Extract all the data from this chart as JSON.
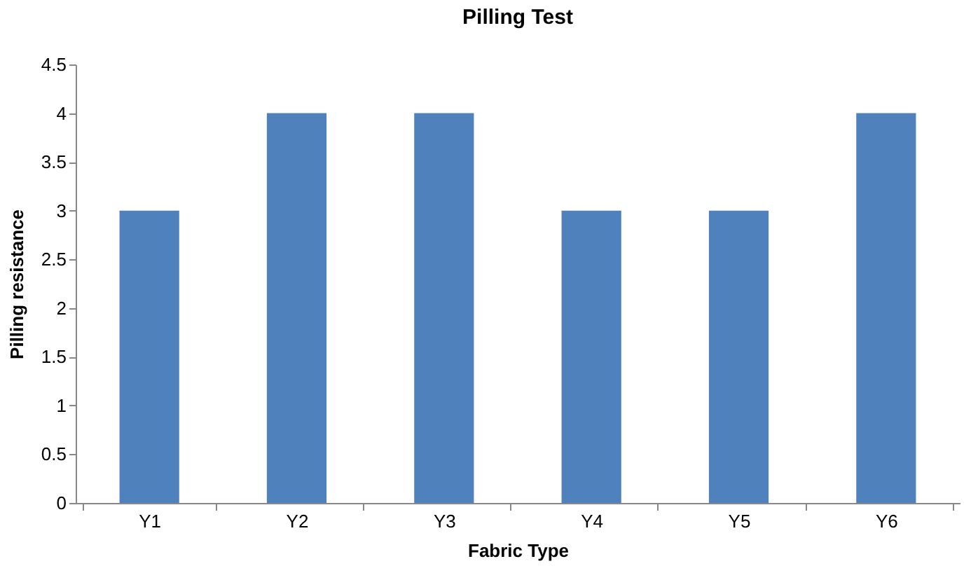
{
  "chart_data": {
    "type": "bar",
    "title": "Pilling Test",
    "xlabel": "Fabric Type",
    "ylabel": "Pilling resistance",
    "categories": [
      "Y1",
      "Y2",
      "Y3",
      "Y4",
      "Y5",
      "Y6"
    ],
    "values": [
      3,
      4,
      4,
      3,
      3,
      4
    ],
    "color": "#4f81bd",
    "ylim": [
      0,
      4.5
    ],
    "yticks": [
      0,
      0.5,
      1,
      1.5,
      2,
      2.5,
      3,
      3.5,
      4,
      4.5
    ],
    "grid": false
  }
}
